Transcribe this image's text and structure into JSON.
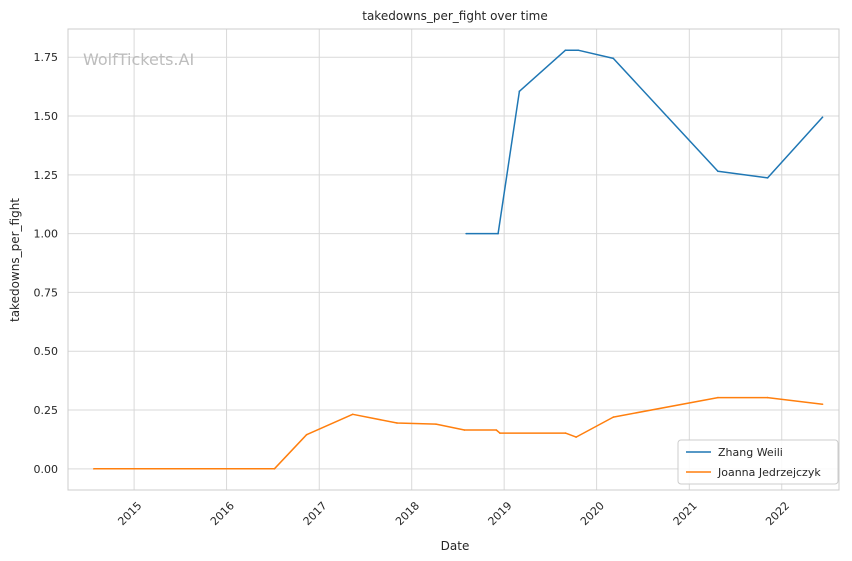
{
  "chart_data": {
    "type": "line",
    "title": "takedowns_per_fight over time",
    "xlabel": "Date",
    "ylabel": "takedowns_per_fight",
    "watermark": "WolfTickets.AI",
    "xlim": [
      "2014-04-15",
      "2022-08-15"
    ],
    "ylim": [
      -0.09,
      1.87
    ],
    "x_ticks": [
      {
        "date": "2015-01-01",
        "label": "2015"
      },
      {
        "date": "2016-01-01",
        "label": "2016"
      },
      {
        "date": "2017-01-01",
        "label": "2017"
      },
      {
        "date": "2018-01-01",
        "label": "2018"
      },
      {
        "date": "2019-01-01",
        "label": "2019"
      },
      {
        "date": "2020-01-01",
        "label": "2020"
      },
      {
        "date": "2021-01-01",
        "label": "2021"
      },
      {
        "date": "2022-01-01",
        "label": "2022"
      }
    ],
    "y_ticks": [
      {
        "value": 0.0,
        "label": "0.00"
      },
      {
        "value": 0.25,
        "label": "0.25"
      },
      {
        "value": 0.5,
        "label": "0.50"
      },
      {
        "value": 0.75,
        "label": "0.75"
      },
      {
        "value": 1.0,
        "label": "1.00"
      },
      {
        "value": 1.25,
        "label": "1.25"
      },
      {
        "value": 1.5,
        "label": "1.50"
      },
      {
        "value": 1.75,
        "label": "1.75"
      }
    ],
    "grid": true,
    "legend_position": "bottom-right",
    "series": [
      {
        "name": "Zhang Weili",
        "color": "#1f77b4",
        "points": [
          {
            "x": "2018-08-04",
            "y": 1.0
          },
          {
            "x": "2018-12-08",
            "y": 1.0
          },
          {
            "x": "2019-03-02",
            "y": 1.605
          },
          {
            "x": "2019-08-31",
            "y": 1.78
          },
          {
            "x": "2019-10-20",
            "y": 1.78
          },
          {
            "x": "2020-03-07",
            "y": 1.745
          },
          {
            "x": "2021-04-24",
            "y": 1.265
          },
          {
            "x": "2021-11-06",
            "y": 1.237
          },
          {
            "x": "2022-06-11",
            "y": 1.495
          }
        ]
      },
      {
        "name": "Joanna Jedrzejczyk",
        "color": "#ff7f0e",
        "points": [
          {
            "x": "2014-07-26",
            "y": 0.0
          },
          {
            "x": "2016-07-08",
            "y": 0.0
          },
          {
            "x": "2016-11-12",
            "y": 0.145
          },
          {
            "x": "2017-05-13",
            "y": 0.232
          },
          {
            "x": "2017-11-04",
            "y": 0.195
          },
          {
            "x": "2018-04-07",
            "y": 0.19
          },
          {
            "x": "2018-07-28",
            "y": 0.165
          },
          {
            "x": "2018-12-01",
            "y": 0.165
          },
          {
            "x": "2018-12-15",
            "y": 0.152
          },
          {
            "x": "2019-08-31",
            "y": 0.152
          },
          {
            "x": "2019-10-12",
            "y": 0.135
          },
          {
            "x": "2020-03-07",
            "y": 0.22
          },
          {
            "x": "2021-04-24",
            "y": 0.303
          },
          {
            "x": "2021-11-06",
            "y": 0.303
          },
          {
            "x": "2022-06-11",
            "y": 0.275
          }
        ]
      }
    ]
  }
}
